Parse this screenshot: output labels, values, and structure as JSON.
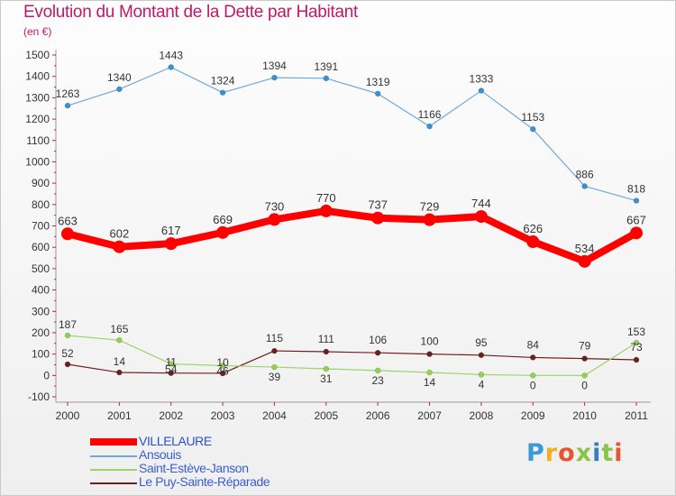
{
  "chart_data": {
    "type": "line",
    "title": "Evolution du Montant de la Dette par Habitant",
    "subtitle": "(en €)",
    "x": [
      "2000",
      "2001",
      "2002",
      "2003",
      "2004",
      "2005",
      "2006",
      "2007",
      "2008",
      "2009",
      "2010",
      "2011"
    ],
    "ylim": [
      -100,
      1500
    ],
    "yticks": [
      -100,
      0,
      100,
      200,
      300,
      400,
      500,
      600,
      700,
      800,
      900,
      1000,
      1100,
      1200,
      1300,
      1400,
      1500
    ],
    "grid": false,
    "legend_position": "bottom-left",
    "series": [
      {
        "name": "VILLELAURE",
        "color": "#ff0000",
        "values": [
          663,
          602,
          617,
          669,
          730,
          770,
          737,
          729,
          744,
          626,
          534,
          667
        ]
      },
      {
        "name": "Ansouis",
        "color": "#6fa8dc",
        "values": [
          1263,
          1340,
          1443,
          1324,
          1394,
          1391,
          1319,
          1166,
          1333,
          1153,
          886,
          818
        ]
      },
      {
        "name": "Saint-Estève-Janson",
        "color": "#9ed36a",
        "values": [
          187,
          165,
          54,
          46,
          39,
          31,
          23,
          14,
          4,
          0,
          0,
          153
        ]
      },
      {
        "name": "Le Puy-Sainte-Réparade",
        "color": "#6b1f1f",
        "values": [
          52,
          14,
          11,
          10,
          115,
          111,
          106,
          100,
          95,
          84,
          79,
          73
        ]
      }
    ]
  },
  "logo": {
    "letters": [
      "P",
      "r",
      "o",
      "x",
      "i",
      "t",
      "i"
    ]
  }
}
